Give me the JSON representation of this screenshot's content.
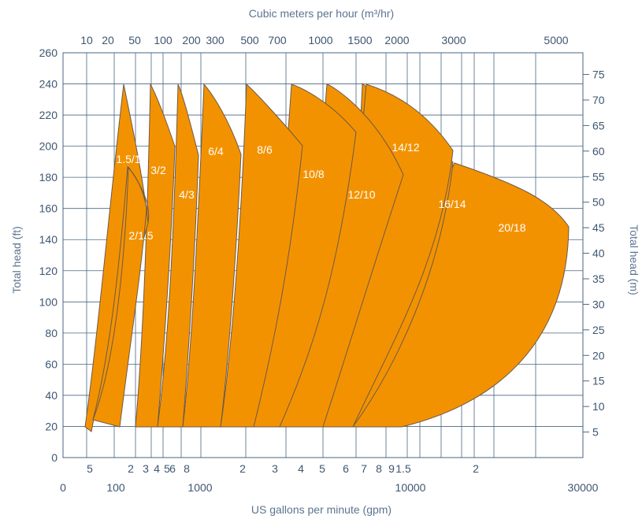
{
  "chart_data": {
    "type": "area",
    "title": "",
    "top_axis_title": "Cubic meters per hour (m³/hr)",
    "bottom_axis_title": "US gallons per minute (gpm)",
    "left_axis_title": "Total head (ft)",
    "right_axis_title": "Total head (m)",
    "x_scale": "log",
    "xlim_gpm": [
      20,
      30000
    ],
    "ylim_ft": [
      0,
      260
    ],
    "grid": true,
    "left_ticks": [
      0,
      20,
      40,
      60,
      80,
      100,
      120,
      140,
      160,
      180,
      200,
      220,
      240,
      260
    ],
    "right_ticks": [
      5,
      10,
      15,
      20,
      25,
      30,
      35,
      40,
      45,
      50,
      55,
      60,
      65,
      70,
      75
    ],
    "top_ticks": [
      10,
      20,
      50,
      100,
      200,
      300,
      500,
      700,
      1000,
      1500,
      2000,
      3000,
      5000
    ],
    "bottom_major_ticks": [
      "0",
      "100",
      "1000",
      "10000",
      "30000"
    ],
    "bottom_minor_ticks": [
      "5",
      "2",
      "3",
      "4",
      "5",
      "6",
      "8",
      "2",
      "3",
      "4",
      "5",
      "6",
      "7",
      "8",
      "9",
      "1.5",
      "2"
    ],
    "fill_color": "#f39200",
    "edge_color": "#6b5a4a",
    "grid_color": "#4a6680",
    "label_color": "#ffffff",
    "text_color": "#5b7490",
    "series": [
      {
        "name": "1.5/1",
        "max_flow_gpm": 185,
        "max_head_ft": 240,
        "runout_head_ft": 148
      },
      {
        "name": "2/1.5",
        "max_flow_gpm": 190,
        "max_head_ft": 188,
        "runout_head_ft": 138
      },
      {
        "name": "3/2",
        "max_flow_gpm": 340,
        "max_head_ft": 240,
        "runout_head_ft": 198
      },
      {
        "name": "4/3",
        "max_flow_gpm": 560,
        "max_head_ft": 240,
        "runout_head_ft": 186
      },
      {
        "name": "6/4",
        "max_flow_gpm": 1100,
        "max_head_ft": 240,
        "runout_head_ft": 195
      },
      {
        "name": "8/6",
        "max_flow_gpm": 1900,
        "max_head_ft": 240,
        "runout_head_ft": 196
      },
      {
        "name": "10/8",
        "max_flow_gpm": 3600,
        "max_head_ft": 240,
        "runout_head_ft": 207
      },
      {
        "name": "12/10",
        "max_flow_gpm": 6600,
        "max_head_ft": 240,
        "runout_head_ft": 207
      },
      {
        "name": "14/12",
        "max_flow_gpm": 13000,
        "max_head_ft": 240,
        "runout_head_ft": 197
      },
      {
        "name": "16/14",
        "max_flow_gpm": 12800,
        "max_head_ft": 197,
        "runout_head_ft": 180
      },
      {
        "name": "20/18",
        "max_flow_gpm": 28000,
        "max_head_ft": 175,
        "runout_head_ft": 148
      }
    ]
  }
}
